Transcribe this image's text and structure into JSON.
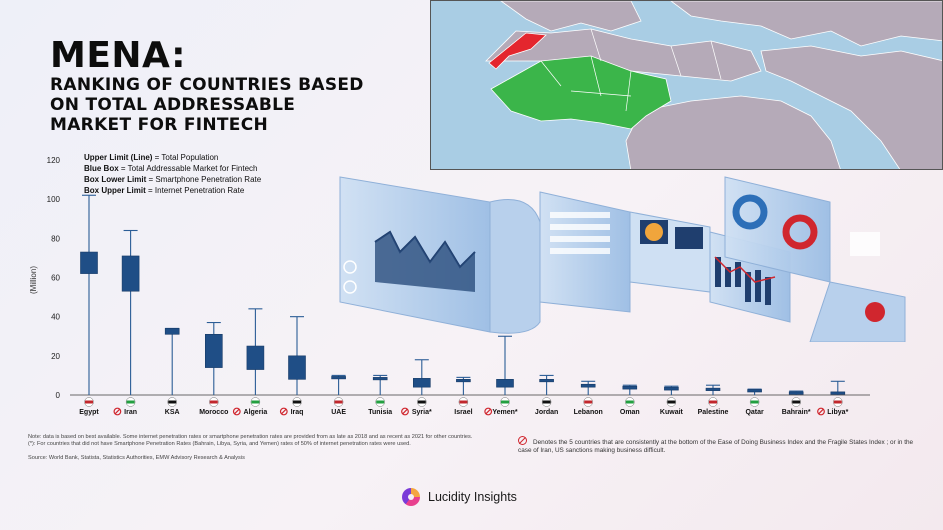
{
  "title": {
    "line1": "MENA:",
    "line2": "RANKING OF COUNTRIES BASED",
    "line3": "ON TOTAL ADDRESSABLE",
    "line4": "MARKET FOR FINTECH"
  },
  "legend": [
    {
      "key": "Upper Limit (Line)",
      "value": " = Total Population"
    },
    {
      "key": "Blue Box",
      "value": " = Total Addressable Market for Fintech"
    },
    {
      "key": "Box Lower Limit",
      "value": " = Smartphone Penetration Rate"
    },
    {
      "key": "Box Upper Limit",
      "value": " = Internet Penetration Rate"
    }
  ],
  "colors": {
    "box": "#1f4e86",
    "whisker": "#2b5d96",
    "map_green": "#3bb54a",
    "map_red": "#e4262e",
    "map_land": "#b5aab8",
    "map_sea": "#a9cde4"
  },
  "chart_data": {
    "type": "box",
    "ylabel": "(Million)",
    "ylim": [
      0,
      120
    ],
    "yticks": [
      0,
      20,
      40,
      60,
      80,
      100,
      120
    ],
    "categories": [
      "Egypt",
      "Iran",
      "KSA",
      "Morocco",
      "Algeria",
      "Iraq",
      "UAE",
      "Tunisia",
      "Syria*",
      "Israel",
      "Yemen*",
      "Jordan",
      "Lebanon",
      "Oman",
      "Kuwait",
      "Palestine",
      "Qatar",
      "Bahrain*",
      "Libya*"
    ],
    "prohibited": [
      false,
      true,
      false,
      false,
      true,
      true,
      false,
      false,
      true,
      false,
      true,
      false,
      false,
      false,
      false,
      false,
      false,
      false,
      true
    ],
    "whisker_top": [
      102,
      84,
      34,
      37,
      44,
      40,
      10,
      10,
      18,
      9,
      30,
      10,
      7,
      5,
      4.5,
      5,
      3,
      2,
      7
    ],
    "box_upper": [
      73,
      71,
      34,
      31,
      25,
      20,
      9.5,
      9,
      8.5,
      8,
      8,
      8,
      5.5,
      4.5,
      4,
      3.5,
      2.8,
      1.6,
      1.6
    ],
    "box_lower": [
      62,
      53,
      31,
      14,
      13,
      8,
      9,
      8.5,
      4,
      7.5,
      4,
      7,
      4,
      3,
      2.5,
      3,
      2.5,
      1,
      1
    ],
    "whisker_bottom": [
      0,
      0,
      0,
      0,
      0,
      0,
      0,
      0,
      0,
      0,
      0,
      0,
      0,
      0,
      0,
      0,
      0,
      0,
      0
    ]
  },
  "notes": {
    "note1": "Note: data is based on best available. Some internet penetration rates or smartphone penetration rates are provided from as late as 2018 and as recent as 2021 for other countries.",
    "note1b": "(*): For countries that did not have Smartphone Penetration Rates (Bahrain, Libya, Syria, and Yemen) rates of 50% of internet penetration rates were used.",
    "source": "Source: World Bank, Statista, Statistics Authorities, EMW Advisory Research & Analysis",
    "prohibited": "Denotes the 5 countries that are consistently at the bottom of the Ease of Doing Business Index and the Fragile States Index ; or in the case of Iran, US sanctions making business difficult."
  },
  "brand": "Lucidity Insights"
}
